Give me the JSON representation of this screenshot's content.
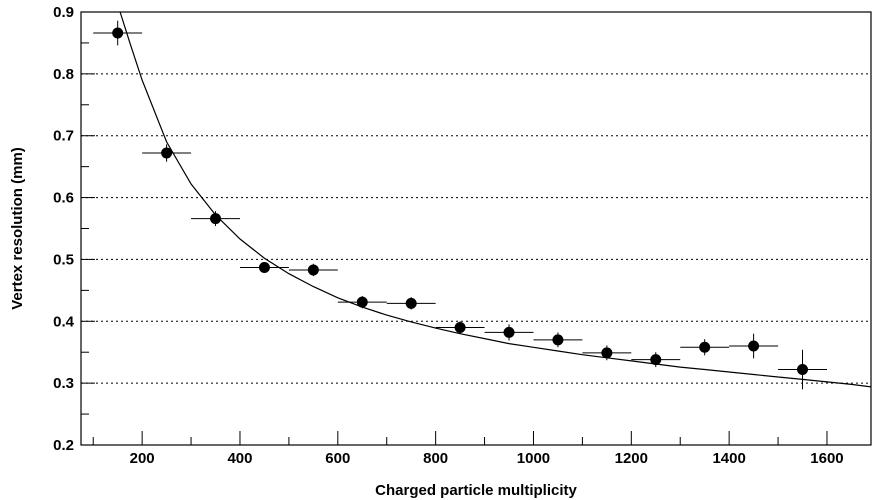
{
  "chart_data": {
    "type": "scatter",
    "title": "",
    "xlabel": "Charged particle multiplicity",
    "ylabel": "Vertex resolution (mm)",
    "xlim": [
      75,
      1690
    ],
    "ylim": [
      0.2,
      0.9
    ],
    "x_ticks": [
      "200",
      "400",
      "600",
      "800",
      "1000",
      "1200",
      "1400",
      "1600"
    ],
    "y_ticks": [
      "0.2",
      "0.3",
      "0.4",
      "0.5",
      "0.6",
      "0.7",
      "0.8",
      "0.9"
    ],
    "grid": "horizontal dotted",
    "series": [
      {
        "kind": "points-with-errors",
        "x": [
          150,
          250,
          350,
          450,
          550,
          650,
          750,
          850,
          950,
          1050,
          1150,
          1250,
          1350,
          1450,
          1550
        ],
        "y": [
          0.866,
          0.672,
          0.566,
          0.487,
          0.483,
          0.431,
          0.429,
          0.39,
          0.382,
          0.37,
          0.349,
          0.338,
          0.358,
          0.36,
          0.322
        ],
        "x_err": [
          50,
          50,
          50,
          50,
          50,
          50,
          50,
          50,
          50,
          50,
          50,
          50,
          50,
          50,
          50
        ],
        "y_err": [
          0.02,
          0.014,
          0.012,
          0.008,
          0.01,
          0.01,
          0.01,
          0.01,
          0.013,
          0.012,
          0.012,
          0.012,
          0.013,
          0.02,
          0.032
        ]
      },
      {
        "kind": "fit-curve",
        "x": [
          155,
          175,
          200,
          250,
          300,
          350,
          400,
          450,
          500,
          550,
          600,
          650,
          700,
          750,
          800,
          850,
          900,
          950,
          1000,
          1050,
          1100,
          1150,
          1200,
          1250,
          1300,
          1350,
          1400,
          1450,
          1500,
          1550,
          1600,
          1650,
          1690
        ],
        "y": [
          0.9,
          0.85,
          0.79,
          0.69,
          0.622,
          0.572,
          0.533,
          0.502,
          0.477,
          0.456,
          0.438,
          0.423,
          0.41,
          0.399,
          0.389,
          0.38,
          0.372,
          0.364,
          0.358,
          0.352,
          0.346,
          0.341,
          0.336,
          0.331,
          0.326,
          0.322,
          0.318,
          0.314,
          0.31,
          0.306,
          0.302,
          0.298,
          0.294
        ]
      }
    ],
    "colors": {
      "points": "#000000",
      "curve": "#000000",
      "grid": "#000000",
      "background": "#ffffff"
    }
  }
}
